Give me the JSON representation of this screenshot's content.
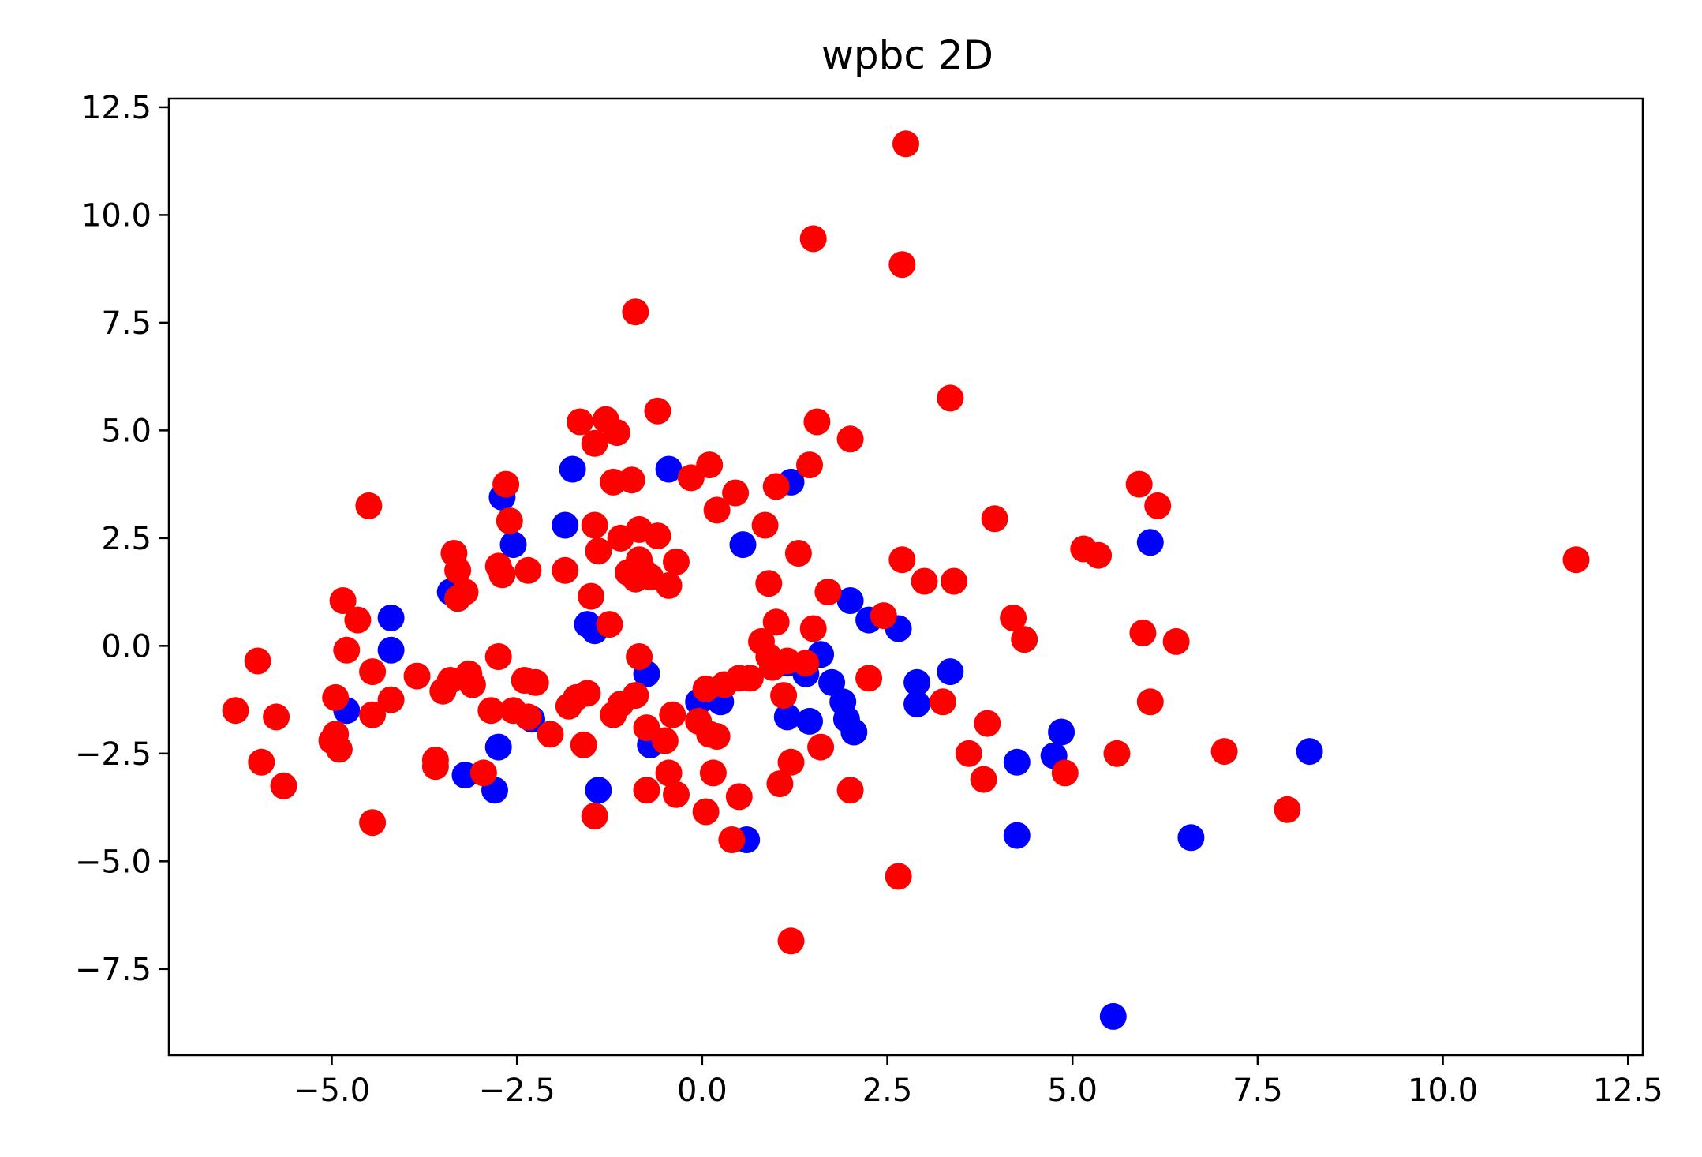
{
  "chart_data": {
    "type": "scatter",
    "title": "wpbc 2D",
    "xlabel": "",
    "ylabel": "",
    "xlim": [
      -7.2,
      12.7
    ],
    "ylim": [
      -9.5,
      12.7
    ],
    "x_ticks": [
      -5.0,
      -2.5,
      0.0,
      2.5,
      5.0,
      7.5,
      10.0,
      12.5
    ],
    "x_tick_labels": [
      "−5.0",
      "−2.5",
      "0.0",
      "2.5",
      "5.0",
      "7.5",
      "10.0",
      "12.5"
    ],
    "y_ticks": [
      12.5,
      10.0,
      7.5,
      5.0,
      2.5,
      0.0,
      -2.5,
      -5.0,
      -7.5
    ],
    "y_tick_labels": [
      "12.5",
      "10.0",
      "7.5",
      "5.0",
      "2.5",
      "0.0",
      "−2.5",
      "−5.0",
      "−7.5"
    ],
    "grid": false,
    "series": [
      {
        "color": "#0000ff",
        "points": [
          [
            -4.8,
            -1.5
          ],
          [
            -4.2,
            0.65
          ],
          [
            -4.2,
            -0.1
          ],
          [
            -3.4,
            1.25
          ],
          [
            -3.2,
            -3.0
          ],
          [
            -2.7,
            3.45
          ],
          [
            -2.55,
            2.35
          ],
          [
            -2.75,
            -2.35
          ],
          [
            -2.8,
            -3.35
          ],
          [
            -2.3,
            -1.7
          ],
          [
            -1.75,
            4.1
          ],
          [
            -1.85,
            2.8
          ],
          [
            -1.55,
            0.5
          ],
          [
            -1.45,
            0.35
          ],
          [
            -1.4,
            -3.35
          ],
          [
            -0.75,
            -0.65
          ],
          [
            -0.7,
            -2.3
          ],
          [
            -0.45,
            4.1
          ],
          [
            -0.05,
            -1.3
          ],
          [
            0.25,
            -1.3
          ],
          [
            0.55,
            2.35
          ],
          [
            0.6,
            -4.5
          ],
          [
            1.15,
            -0.4
          ],
          [
            1.2,
            3.8
          ],
          [
            1.15,
            -1.65
          ],
          [
            1.4,
            -0.65
          ],
          [
            1.45,
            -1.75
          ],
          [
            1.6,
            -0.2
          ],
          [
            1.75,
            -0.85
          ],
          [
            1.9,
            -1.3
          ],
          [
            1.95,
            -1.7
          ],
          [
            2.05,
            -2.0
          ],
          [
            2.0,
            1.05
          ],
          [
            2.25,
            0.6
          ],
          [
            2.65,
            0.4
          ],
          [
            2.9,
            -0.85
          ],
          [
            2.9,
            -1.35
          ],
          [
            3.35,
            -0.6
          ],
          [
            4.25,
            -2.7
          ],
          [
            4.25,
            -4.4
          ],
          [
            4.75,
            -2.55
          ],
          [
            4.85,
            -2.0
          ],
          [
            5.55,
            -8.6
          ],
          [
            6.05,
            2.4
          ],
          [
            6.6,
            -4.45
          ],
          [
            8.2,
            -2.45
          ]
        ]
      },
      {
        "color": "#ff0000",
        "points": [
          [
            -6.3,
            -1.5
          ],
          [
            -6.0,
            -0.35
          ],
          [
            -5.95,
            -2.7
          ],
          [
            -5.75,
            -1.65
          ],
          [
            -5.65,
            -3.25
          ],
          [
            -5.0,
            -2.2
          ],
          [
            -4.95,
            -1.2
          ],
          [
            -4.95,
            -2.05
          ],
          [
            -4.9,
            -2.4
          ],
          [
            -4.85,
            1.05
          ],
          [
            -4.8,
            -0.1
          ],
          [
            -4.65,
            0.6
          ],
          [
            -4.5,
            3.25
          ],
          [
            -4.45,
            -0.6
          ],
          [
            -4.45,
            -1.6
          ],
          [
            -4.45,
            -4.1
          ],
          [
            -4.2,
            -1.25
          ],
          [
            -3.85,
            -0.7
          ],
          [
            -3.6,
            -2.65
          ],
          [
            -3.6,
            -2.8
          ],
          [
            -3.5,
            -1.05
          ],
          [
            -3.4,
            -0.8
          ],
          [
            -3.35,
            2.15
          ],
          [
            -3.3,
            1.75
          ],
          [
            -3.3,
            1.1
          ],
          [
            -3.2,
            1.25
          ],
          [
            -3.15,
            -0.65
          ],
          [
            -3.1,
            -0.9
          ],
          [
            -2.95,
            -2.95
          ],
          [
            -2.85,
            -1.5
          ],
          [
            -2.75,
            -0.25
          ],
          [
            -2.75,
            1.85
          ],
          [
            -2.7,
            1.65
          ],
          [
            -2.65,
            3.75
          ],
          [
            -2.6,
            2.9
          ],
          [
            -2.55,
            -1.5
          ],
          [
            -2.4,
            -0.8
          ],
          [
            -2.35,
            -1.65
          ],
          [
            -2.35,
            1.75
          ],
          [
            -2.25,
            -0.85
          ],
          [
            -2.05,
            -2.05
          ],
          [
            -1.85,
            1.75
          ],
          [
            -1.8,
            -1.4
          ],
          [
            -1.7,
            -1.2
          ],
          [
            -1.65,
            5.2
          ],
          [
            -1.6,
            -2.3
          ],
          [
            -1.55,
            -1.1
          ],
          [
            -1.5,
            1.15
          ],
          [
            -1.45,
            4.7
          ],
          [
            -1.45,
            2.8
          ],
          [
            -1.4,
            2.2
          ],
          [
            -1.45,
            -3.95
          ],
          [
            -1.3,
            5.25
          ],
          [
            -1.25,
            0.5
          ],
          [
            -1.2,
            3.8
          ],
          [
            -1.2,
            -1.6
          ],
          [
            -1.15,
            4.95
          ],
          [
            -1.1,
            2.5
          ],
          [
            -1.1,
            -1.35
          ],
          [
            -1.0,
            1.7
          ],
          [
            -0.95,
            3.85
          ],
          [
            -0.9,
            -1.15
          ],
          [
            -0.9,
            1.55
          ],
          [
            -0.9,
            7.75
          ],
          [
            -0.85,
            -0.25
          ],
          [
            -0.85,
            2.0
          ],
          [
            -0.85,
            2.7
          ],
          [
            -0.8,
            1.75
          ],
          [
            -0.75,
            -1.9
          ],
          [
            -0.75,
            -3.35
          ],
          [
            -0.7,
            1.6
          ],
          [
            -0.6,
            2.55
          ],
          [
            -0.6,
            5.45
          ],
          [
            -0.5,
            -2.2
          ],
          [
            -0.45,
            1.4
          ],
          [
            -0.45,
            -2.95
          ],
          [
            -0.4,
            -1.6
          ],
          [
            -0.35,
            -3.45
          ],
          [
            -0.35,
            1.95
          ],
          [
            -0.15,
            3.9
          ],
          [
            -0.05,
            -1.75
          ],
          [
            0.05,
            -1.0
          ],
          [
            0.1,
            -2.05
          ],
          [
            0.1,
            4.2
          ],
          [
            0.05,
            -3.85
          ],
          [
            0.15,
            -2.95
          ],
          [
            0.2,
            3.15
          ],
          [
            0.2,
            -2.1
          ],
          [
            0.3,
            -0.9
          ],
          [
            0.4,
            -4.5
          ],
          [
            0.45,
            3.55
          ],
          [
            0.5,
            -0.75
          ],
          [
            0.5,
            -3.5
          ],
          [
            0.65,
            -0.75
          ],
          [
            0.8,
            0.1
          ],
          [
            0.85,
            2.8
          ],
          [
            0.9,
            1.45
          ],
          [
            0.9,
            -0.25
          ],
          [
            0.95,
            -0.5
          ],
          [
            1.0,
            3.7
          ],
          [
            1.0,
            0.55
          ],
          [
            1.05,
            -3.2
          ],
          [
            1.1,
            -1.15
          ],
          [
            1.15,
            -0.35
          ],
          [
            1.2,
            -2.7
          ],
          [
            1.2,
            -6.85
          ],
          [
            1.3,
            2.15
          ],
          [
            1.4,
            -0.4
          ],
          [
            1.45,
            4.2
          ],
          [
            1.5,
            0.4
          ],
          [
            1.5,
            9.45
          ],
          [
            1.55,
            5.2
          ],
          [
            1.6,
            -2.35
          ],
          [
            1.7,
            1.25
          ],
          [
            2.0,
            4.8
          ],
          [
            2.0,
            -3.35
          ],
          [
            2.25,
            -0.75
          ],
          [
            2.45,
            0.7
          ],
          [
            2.65,
            -5.35
          ],
          [
            2.7,
            2.0
          ],
          [
            2.7,
            8.85
          ],
          [
            2.75,
            11.65
          ],
          [
            3.0,
            1.5
          ],
          [
            3.25,
            -1.3
          ],
          [
            3.35,
            5.75
          ],
          [
            3.4,
            1.5
          ],
          [
            3.6,
            -2.5
          ],
          [
            3.8,
            -3.1
          ],
          [
            3.85,
            -1.8
          ],
          [
            3.95,
            2.95
          ],
          [
            4.2,
            0.65
          ],
          [
            4.35,
            0.15
          ],
          [
            4.9,
            -2.95
          ],
          [
            5.15,
            2.25
          ],
          [
            5.35,
            2.1
          ],
          [
            5.6,
            -2.5
          ],
          [
            5.9,
            3.75
          ],
          [
            5.95,
            0.3
          ],
          [
            6.05,
            -1.3
          ],
          [
            6.15,
            3.25
          ],
          [
            6.4,
            0.1
          ],
          [
            7.05,
            -2.45
          ],
          [
            7.9,
            -3.8
          ],
          [
            11.8,
            2.0
          ]
        ]
      }
    ]
  }
}
